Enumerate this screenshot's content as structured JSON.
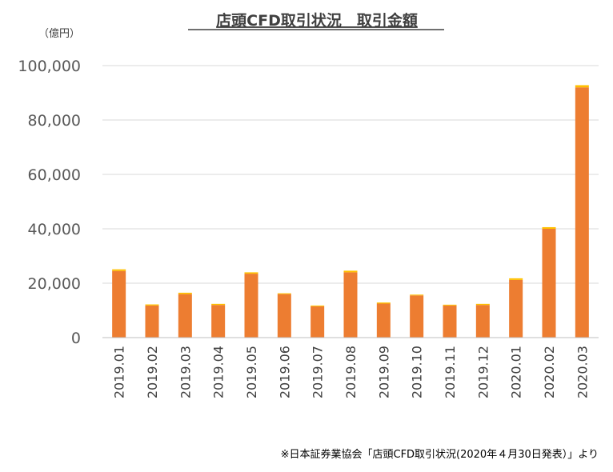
{
  "chart_data": {
    "type": "bar",
    "stacked": true,
    "title": "店頭CFD取引状況　取引金額",
    "unit_label": "（億円）",
    "source_note": "※日本証券業協会「店頭CFD取引状況(2020年４月30日発表）」より",
    "categories": [
      "2019.01",
      "2019.02",
      "2019.03",
      "2019.04",
      "2019.05",
      "2019.06",
      "2019.07",
      "2019.08",
      "2019.09",
      "2019.10",
      "2019.11",
      "2019.12",
      "2020.01",
      "2020.02",
      "2020.03"
    ],
    "series": [
      {
        "color": "#ed7d31",
        "values": [
          24500,
          11800,
          16000,
          12000,
          23500,
          16000,
          11500,
          24000,
          12500,
          15500,
          11800,
          12000,
          21200,
          40000,
          92000
        ]
      },
      {
        "color": "#ffc000",
        "values": [
          600,
          400,
          500,
          400,
          500,
          300,
          300,
          600,
          400,
          300,
          300,
          400,
          600,
          600,
          800
        ]
      }
    ],
    "ylim": [
      0,
      100000
    ],
    "y_ticks": [
      "0",
      "20,000",
      "40,000",
      "60,000",
      "80,000",
      "100,000"
    ],
    "y_tick_values": [
      0,
      20000,
      40000,
      60000,
      80000,
      100000
    ],
    "grid": true,
    "legend": "none"
  }
}
